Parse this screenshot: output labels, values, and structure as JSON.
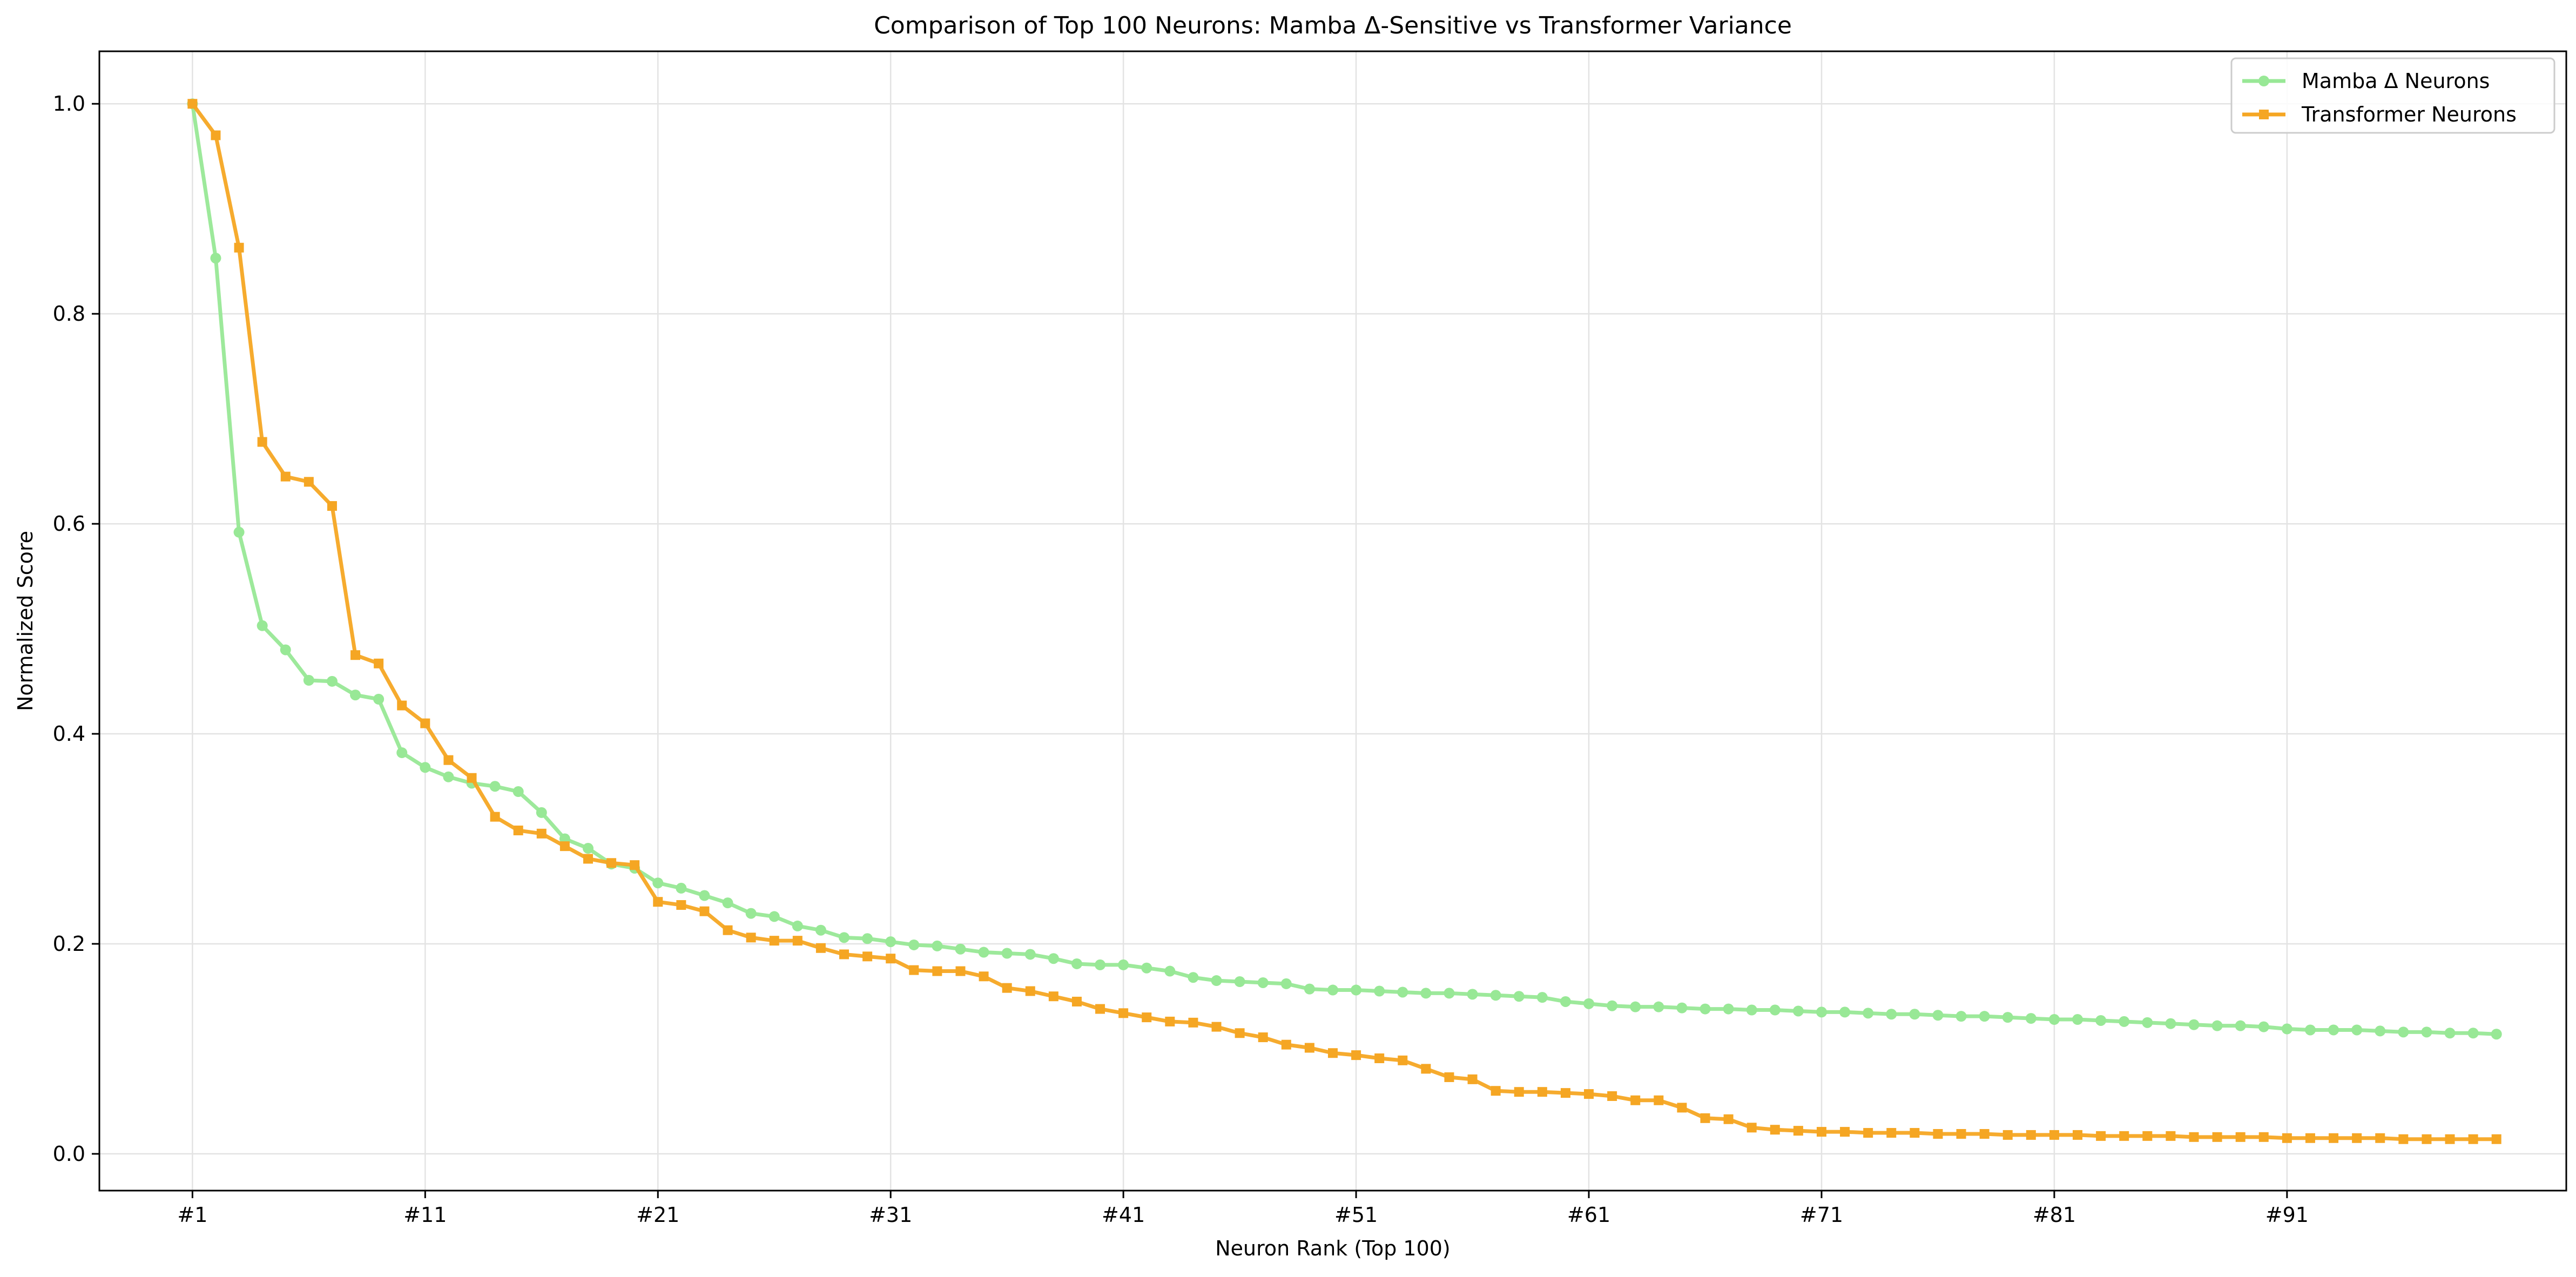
{
  "chart_data": {
    "type": "line",
    "title": "Comparison of Top 100 Neurons: Mamba Δ-Sensitive vs Transformer Variance",
    "xlabel": "Neuron Rank (Top 100)",
    "ylabel": "Normalized Score",
    "xlim": [
      -4,
      102
    ],
    "ylim": [
      -0.035,
      1.05
    ],
    "x_tick_values": [
      0,
      10,
      20,
      30,
      40,
      50,
      60,
      70,
      80,
      90
    ],
    "x_tick_labels": [
      "#1",
      "#11",
      "#21",
      "#31",
      "#41",
      "#51",
      "#61",
      "#71",
      "#81",
      "#91"
    ],
    "y_tick_values": [
      0.0,
      0.2,
      0.4,
      0.6,
      0.8,
      1.0
    ],
    "y_tick_labels": [
      "0.0",
      "0.2",
      "0.4",
      "0.6",
      "0.8",
      "1.0"
    ],
    "grid": true,
    "legend_position": "upper right",
    "series": [
      {
        "name": "Mamba Δ Neurons",
        "color": "#98e896",
        "marker": "circle",
        "values": [
          1.0,
          0.853,
          0.592,
          0.503,
          0.48,
          0.451,
          0.45,
          0.437,
          0.433,
          0.382,
          0.368,
          0.359,
          0.353,
          0.35,
          0.345,
          0.325,
          0.3,
          0.291,
          0.276,
          0.272,
          0.258,
          0.253,
          0.246,
          0.239,
          0.229,
          0.226,
          0.217,
          0.213,
          0.206,
          0.205,
          0.202,
          0.199,
          0.198,
          0.195,
          0.192,
          0.191,
          0.19,
          0.186,
          0.181,
          0.18,
          0.18,
          0.177,
          0.174,
          0.168,
          0.165,
          0.164,
          0.163,
          0.162,
          0.157,
          0.156,
          0.156,
          0.155,
          0.154,
          0.153,
          0.153,
          0.152,
          0.151,
          0.15,
          0.149,
          0.145,
          0.143,
          0.141,
          0.14,
          0.14,
          0.139,
          0.138,
          0.138,
          0.137,
          0.137,
          0.136,
          0.135,
          0.135,
          0.134,
          0.133,
          0.133,
          0.132,
          0.131,
          0.131,
          0.13,
          0.129,
          0.128,
          0.128,
          0.127,
          0.126,
          0.125,
          0.124,
          0.123,
          0.122,
          0.122,
          0.121,
          0.119,
          0.118,
          0.118,
          0.118,
          0.117,
          0.116,
          0.116,
          0.115,
          0.115,
          0.114
        ]
      },
      {
        "name": "Transformer Neurons",
        "color": "#f5a623",
        "marker": "square",
        "values": [
          1.0,
          0.97,
          0.863,
          0.678,
          0.645,
          0.64,
          0.617,
          0.475,
          0.467,
          0.427,
          0.41,
          0.375,
          0.358,
          0.321,
          0.308,
          0.305,
          0.293,
          0.281,
          0.277,
          0.275,
          0.24,
          0.237,
          0.231,
          0.213,
          0.206,
          0.203,
          0.203,
          0.196,
          0.19,
          0.188,
          0.186,
          0.175,
          0.174,
          0.174,
          0.169,
          0.158,
          0.155,
          0.15,
          0.145,
          0.138,
          0.134,
          0.13,
          0.126,
          0.125,
          0.121,
          0.115,
          0.111,
          0.104,
          0.101,
          0.096,
          0.094,
          0.091,
          0.089,
          0.081,
          0.073,
          0.071,
          0.06,
          0.059,
          0.059,
          0.058,
          0.057,
          0.055,
          0.051,
          0.051,
          0.044,
          0.034,
          0.033,
          0.025,
          0.023,
          0.022,
          0.021,
          0.021,
          0.02,
          0.02,
          0.02,
          0.019,
          0.019,
          0.019,
          0.018,
          0.018,
          0.018,
          0.018,
          0.017,
          0.017,
          0.017,
          0.017,
          0.016,
          0.016,
          0.016,
          0.016,
          0.015,
          0.015,
          0.015,
          0.015,
          0.015,
          0.014,
          0.014,
          0.014,
          0.014,
          0.014
        ]
      }
    ]
  }
}
